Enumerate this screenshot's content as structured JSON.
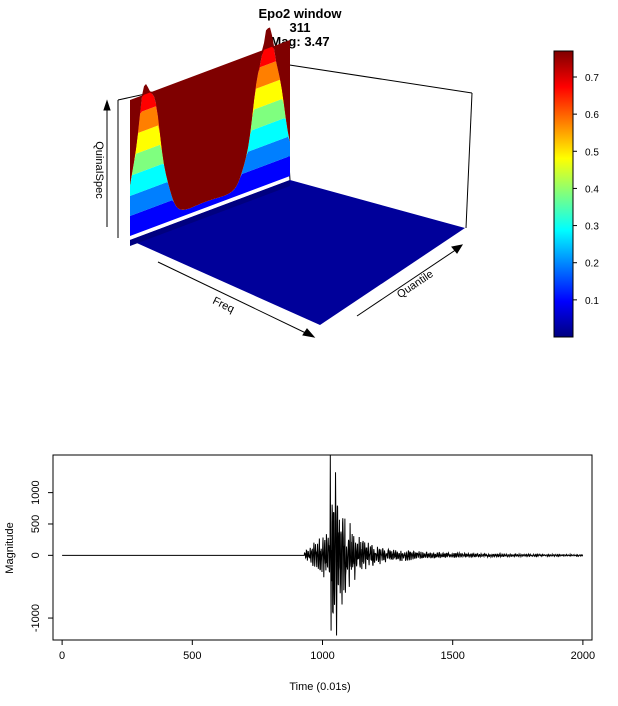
{
  "title_lines": [
    "Epo2 window",
    "311",
    "Mag: 3.47"
  ],
  "chart_data": [
    {
      "type": "surface3d",
      "title": "Epo2 window\n311\nMag: 3.47",
      "axes": {
        "x": "Freq",
        "y": "Quantile",
        "z": "QuinaISpec"
      },
      "colorscale": {
        "name": "jet",
        "ticks": [
          0.1,
          0.2,
          0.3,
          0.4,
          0.5,
          0.6,
          0.7
        ],
        "tick_labels": [
          "0.1",
          "0.2",
          "0.3",
          "0.4",
          "0.5",
          "0.6",
          "0.7"
        ],
        "range": [
          0.0,
          0.77
        ],
        "stops": [
          "#00007f",
          "#0000ff",
          "#007fff",
          "#00ffff",
          "#7fff7f",
          "#ffff00",
          "#ff7f00",
          "#ff0000",
          "#7f0000"
        ]
      },
      "peaks": [
        {
          "freq_position": "low",
          "max_value": 0.72
        },
        {
          "freq_position": "mid",
          "max_value": 0.76
        }
      ]
    },
    {
      "type": "line",
      "xlabel": "Time (0.01s)",
      "ylabel": "Magnitude",
      "xlim": [
        -35,
        2035
      ],
      "ylim": [
        -1350,
        1600
      ],
      "xticks": [
        0,
        500,
        1000,
        1500,
        2000
      ],
      "xtick_labels": [
        "0",
        "500",
        "1000",
        "1500",
        "2000"
      ],
      "yticks": [
        -1000,
        0,
        500,
        1000
      ],
      "ytick_labels": [
        "-1000",
        "0",
        "500",
        "1000"
      ],
      "n_samples": 2000,
      "event": {
        "quiet_until": 930,
        "p_onset": 930,
        "peak_time": 1030,
        "peak_max": 1600,
        "peak_min": -1200,
        "coda_end": 2000
      }
    }
  ]
}
